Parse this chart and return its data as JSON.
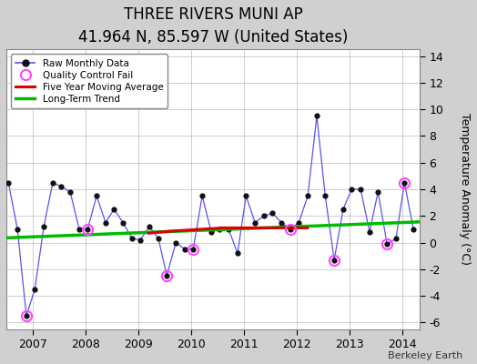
{
  "title": "THREE RIVERS MUNI AP",
  "subtitle": "41.964 N, 85.597 W (United States)",
  "ylabel": "Temperature Anomaly (°C)",
  "credit": "Berkeley Earth",
  "ylim": [
    -6.5,
    14.5
  ],
  "yticks": [
    -6,
    -4,
    -2,
    0,
    2,
    4,
    6,
    8,
    10,
    12,
    14
  ],
  "xlim": [
    2006.5,
    2014.33
  ],
  "xticks": [
    2007,
    2008,
    2009,
    2010,
    2011,
    2012,
    2013,
    2014
  ],
  "bg_color": "#d0d0d0",
  "plot_bg_color": "#ffffff",
  "raw_data": {
    "times": [
      2006.54,
      2006.71,
      2006.88,
      2007.04,
      2007.21,
      2007.38,
      2007.54,
      2007.71,
      2007.88,
      2008.04,
      2008.21,
      2008.38,
      2008.54,
      2008.71,
      2008.88,
      2009.04,
      2009.21,
      2009.38,
      2009.54,
      2009.71,
      2009.88,
      2010.04,
      2010.21,
      2010.38,
      2010.54,
      2010.71,
      2010.88,
      2011.04,
      2011.21,
      2011.38,
      2011.54,
      2011.71,
      2011.88,
      2012.04,
      2012.21,
      2012.38,
      2012.54,
      2012.71,
      2012.88,
      2013.04,
      2013.21,
      2013.38,
      2013.54,
      2013.71,
      2013.88,
      2014.04,
      2014.21
    ],
    "values": [
      4.5,
      1.0,
      -5.5,
      -3.5,
      1.2,
      4.5,
      4.2,
      3.8,
      1.0,
      1.0,
      3.5,
      1.5,
      2.5,
      1.5,
      0.3,
      0.2,
      1.2,
      0.3,
      -2.5,
      0.0,
      -0.5,
      -0.5,
      3.5,
      0.8,
      1.0,
      1.0,
      -0.8,
      3.5,
      1.5,
      2.0,
      2.2,
      1.5,
      1.0,
      1.5,
      3.5,
      9.5,
      3.5,
      -1.3,
      2.5,
      4.0,
      4.0,
      0.8,
      3.8,
      -0.1,
      0.3,
      4.5,
      1.0
    ]
  },
  "qc_fail_times": [
    2006.88,
    2008.04,
    2009.54,
    2010.04,
    2011.88,
    2012.71,
    2013.71,
    2014.04
  ],
  "qc_fail_values": [
    -5.5,
    1.0,
    -2.5,
    -0.5,
    1.0,
    -1.3,
    -0.1,
    4.5
  ],
  "five_year_ma_times": [
    2009.2,
    2009.4,
    2009.6,
    2009.8,
    2010.0,
    2010.2,
    2010.4,
    2010.6,
    2010.8,
    2011.0,
    2011.2,
    2011.4,
    2011.6,
    2011.8,
    2012.0,
    2012.2
  ],
  "five_year_ma_values": [
    0.7,
    0.78,
    0.85,
    0.9,
    0.95,
    1.0,
    1.05,
    1.1,
    1.1,
    1.1,
    1.1,
    1.1,
    1.1,
    1.1,
    1.1,
    1.1
  ],
  "long_term_trend_times": [
    2006.5,
    2014.33
  ],
  "long_term_trend_values": [
    0.35,
    1.55
  ],
  "line_color": "#5555ee",
  "marker_color": "#111111",
  "qc_color": "#ff44ff",
  "ma_color": "#dd0000",
  "trend_color": "#00bb00",
  "grid_color": "#bbbbbb",
  "title_fontsize": 12,
  "subtitle_fontsize": 9,
  "tick_fontsize": 9,
  "ylabel_fontsize": 9
}
